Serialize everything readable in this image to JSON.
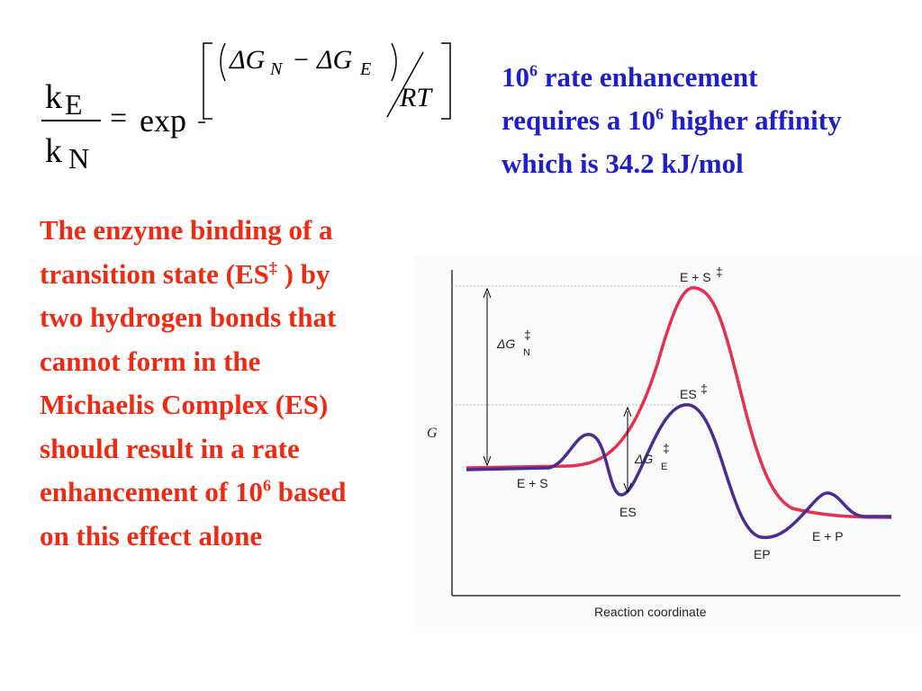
{
  "equation": {
    "lhs_num": "k",
    "lhs_num_sub": "E",
    "lhs_den": "k",
    "lhs_den_sub": "N",
    "equals": "=",
    "func": "exp",
    "delta_g_1": "ΔG",
    "sub_1": "N",
    "minus": "−",
    "delta_g_2": "ΔG",
    "sub_2": "E",
    "divisor": "RT"
  },
  "note": {
    "segments": [
      "10",
      "6",
      " rate enhancement requires a 10",
      "6",
      " higher affinity which is 34.2 kJ/mol"
    ]
  },
  "body": {
    "segments": [
      "The enzyme binding of a transition state (ES",
      "‡",
      " ) by two hydrogen bonds that cannot form in the Michaelis Complex (ES) should result in a rate enhancement of 10",
      "6",
      " based on this effect alone"
    ]
  },
  "diagram": {
    "peak_1": "E + S",
    "peak_1_mark": "‡",
    "peak_2": "ES",
    "peak_2_mark": "‡",
    "delta_n": "ΔG",
    "delta_n_sub": "N",
    "delta_n_mark": "‡",
    "delta_e": "ΔG",
    "delta_e_sub": "E",
    "delta_e_mark": "‡",
    "y_axis_label": "G",
    "start": "E + S",
    "complex": "ES",
    "product_complex": "EP",
    "end": "E + P",
    "x_axis_label": "Reaction coordinate"
  }
}
